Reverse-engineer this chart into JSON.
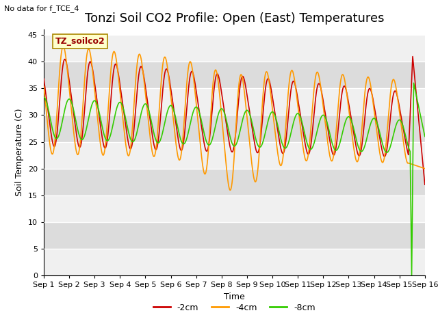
{
  "title": "Tonzi Soil CO2 Profile: Open (East) Temperatures",
  "xlabel": "Time",
  "ylabel": "Soil Temperature (C)",
  "note": "No data for f_TCE_4",
  "legend_label": "TZ_soilco2",
  "legend_entries": [
    "-2cm",
    "-4cm",
    "-8cm"
  ],
  "line_colors": [
    "#cc0000",
    "#ff9900",
    "#33cc00"
  ],
  "ylim": [
    0,
    46
  ],
  "yticks": [
    0,
    5,
    10,
    15,
    20,
    25,
    30,
    35,
    40,
    45
  ],
  "background_color": "#ffffff",
  "band_light": "#f0f0f0",
  "band_dark": "#dcdcdc",
  "title_fontsize": 13,
  "axis_fontsize": 9,
  "tick_fontsize": 8
}
